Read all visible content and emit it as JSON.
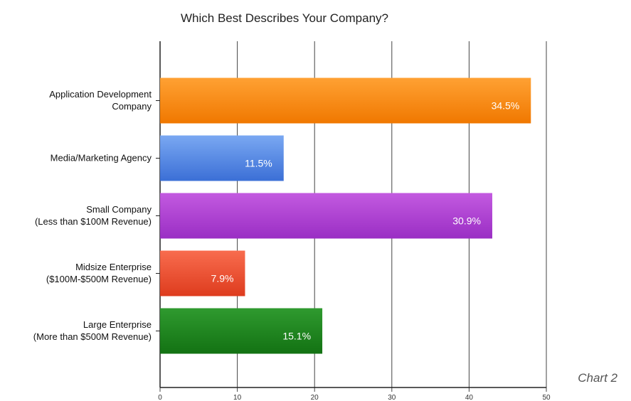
{
  "caption": "Chart 2",
  "chart_data": {
    "type": "bar",
    "orientation": "horizontal",
    "title": "Which Best Describes Your Company?",
    "xlabel": "",
    "ylabel": "",
    "xlim": [
      0,
      50
    ],
    "x_ticks": [
      0,
      10,
      20,
      30,
      40,
      50
    ],
    "grid": true,
    "categories": [
      [
        "Application Development",
        "Company"
      ],
      [
        "Media/Marketing Agency"
      ],
      [
        "Small Company",
        "(Less than $100M Revenue)"
      ],
      [
        "Midsize Enterprise",
        "($100M-$500M Revenue)"
      ],
      [
        "Large Enterprise",
        "(More than $500M Revenue)"
      ]
    ],
    "values": [
      48,
      16,
      43,
      11,
      21
    ],
    "data_labels": [
      "34.5%",
      "11.5%",
      "30.9%",
      "7.9%",
      "15.1%"
    ],
    "colors": [
      [
        "#ffa133",
        "#f07800"
      ],
      [
        "#7aa8f2",
        "#3b6fd6"
      ],
      [
        "#c35ae0",
        "#9a2ec4"
      ],
      [
        "#f86c4e",
        "#de3c1e"
      ],
      [
        "#2f9a2f",
        "#137213"
      ]
    ]
  }
}
